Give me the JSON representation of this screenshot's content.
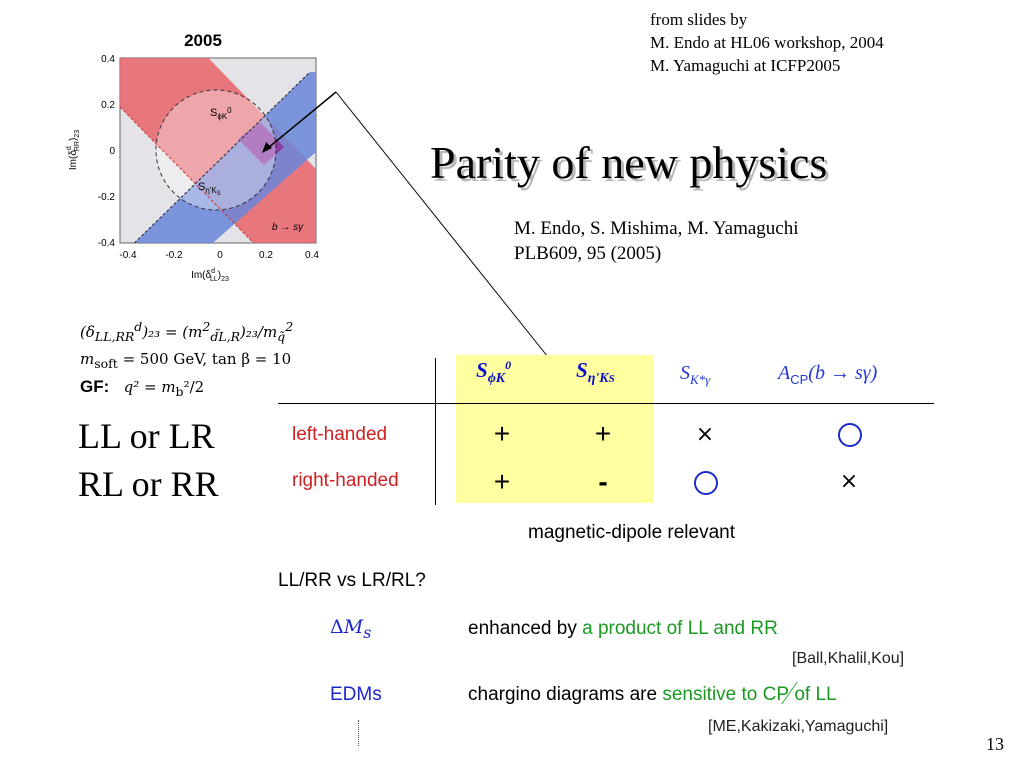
{
  "credit": {
    "line1": "from slides by",
    "line2": "M. Endo at HL06 workshop, 2004",
    "line3": "M. Yamaguchi at ICFP2005"
  },
  "title": "Parity of new physics",
  "reference": {
    "authors": "M. Endo, S. Mishima, M. Yamaguchi",
    "journal": "PLB609, 95 (2005)"
  },
  "plot": {
    "year": "2005",
    "ylabel": "Im(δ",
    "ylabel_sup": "d",
    "ylabel_sub": "RR",
    "ylabel_end": ")",
    "ylabel_idx": "23",
    "xlabel": "Im(δ",
    "xlabel_sup": "d",
    "xlabel_sub": "LL",
    "xlabel_end": ")",
    "xlabel_idx": "23",
    "yticks": [
      "0.4",
      "0.2",
      "0",
      "-0.2",
      "-0.4"
    ],
    "xticks": [
      "-0.4",
      "-0.2",
      "0",
      "0.2",
      "0.4"
    ],
    "band_red_label": "S",
    "band_red_sub": "ϕK",
    "band_red_sup": "0",
    "band_blue_label": "S",
    "band_blue_sub": "η'K",
    "band_blue_sub2": "S",
    "region_label": "b → sγ",
    "colors": {
      "red_band": "#e8646a",
      "blue_band": "#6a86d8",
      "overlap": "#8a3aa0",
      "bg": "#e4e4e8"
    }
  },
  "params": {
    "line1": "(δ",
    "line1_sub": "LL,RR",
    "line1_sup": "d",
    "line1_rest": ")₂₃ = (m",
    "line1_sq": "2",
    "line1_sub2": "d̃L,R",
    "line1_rest2": ")₂₃/m",
    "line1_q": "q̃",
    "line1_sq2": "2",
    "line2": "m",
    "line2_sub": "soft",
    "line2_rest": " = 500 GeV,  tan β = 10",
    "gf_label": "GF:",
    "gf_eq": "q² = m",
    "gf_sub": "b",
    "gf_rest": "²/2"
  },
  "chiralities": {
    "line1": "LL or LR",
    "line2": "RL or RR"
  },
  "table": {
    "col1": "S",
    "col1_sub": "ϕK",
    "col1_sup": "0",
    "col2": "S",
    "col2_sub": "η'K",
    "col2_sub2": "S",
    "col3": "S",
    "col3_sub": "K*γ",
    "col4": "A",
    "col4_sub": "CP",
    "col4_rest": "(b → sγ)",
    "row1_label": "left-handed",
    "row2_label": "right-handed",
    "row1": [
      "+",
      "+",
      "×",
      "○"
    ],
    "row2": [
      "+",
      "-",
      "○",
      "×"
    ]
  },
  "magnetic": "magnetic-dipole relevant",
  "llrr": "LL/RR vs LR/RL?",
  "dms": {
    "label_prefix": "Δ",
    "label_var": "M",
    "label_sub": "s",
    "text_black": "enhanced by ",
    "text_green": "a product of LL and RR",
    "cite": "[Ball,Khalil,Kou]"
  },
  "edm": {
    "label": "EDMs",
    "text_black": "chargino diagrams are ",
    "text_green": "sensitive to ",
    "text_cp": "CP",
    "text_green2": " of LL",
    "cite": "[ME,Kakizaki,Yamaguchi]"
  },
  "page_number": "13"
}
